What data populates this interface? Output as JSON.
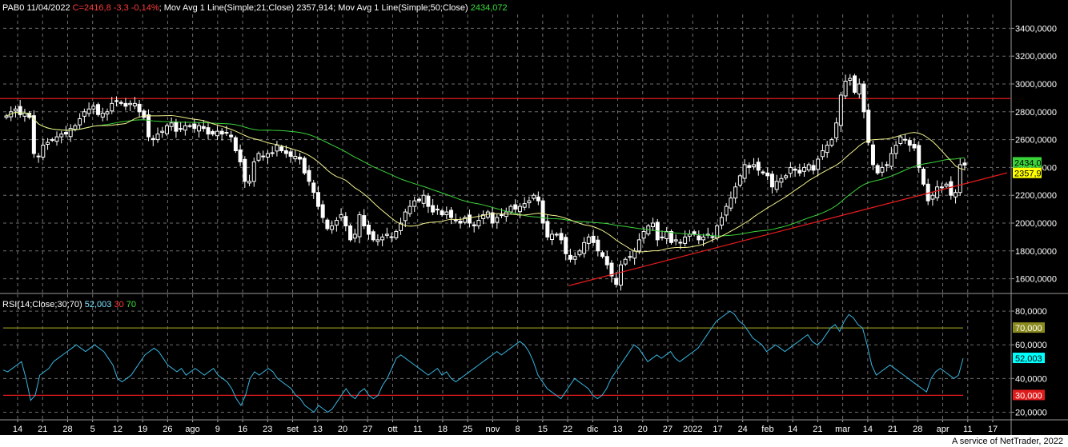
{
  "header": {
    "symbol_date": "PAB0 11/04/2022",
    "close_info": "C=2416,8 -3,3 -0,14%",
    "ma21_label": "Mov Avg 1 Line(Simple;21;Close)",
    "ma21_value": "2357,914",
    "ma50_label": "Mov Avg 1 Line(Simple;50;Close)",
    "ma50_value": "2434,072"
  },
  "rsi_header": {
    "label": "RSI(14;Close;30;70)",
    "value": "52,003",
    "low": "30",
    "high": "70"
  },
  "footer": "A service of NetTrader, 2022",
  "colors": {
    "candle": "#ffffff",
    "ma21": "#f0f08c",
    "ma50": "#3ad43a",
    "trendline": "#e01b1b",
    "rsi_line": "#38b6e0",
    "rsi70": "#8a8a1f",
    "rsi30": "#e01b1b",
    "grid": "#6e6e6e"
  },
  "chart_data": [
    {
      "type": "candlestick",
      "title": "PAB0 11/04/2022",
      "ylim": [
        1500,
        3500
      ],
      "y_ticks": [
        "1600,0000",
        "1800,0000",
        "2000,0000",
        "2200,0000",
        "2400,0000",
        "2600,0000",
        "2800,0000",
        "3000,0000",
        "3200,0000",
        "3400,0000"
      ],
      "x_ticks": [
        "14",
        "21",
        "28",
        "5",
        "12",
        "19",
        "26",
        "ago",
        "9",
        "16",
        "23",
        "set",
        "13",
        "20",
        "27",
        "ott",
        "11",
        "18",
        "25",
        "nov",
        "8",
        "15",
        "22",
        "dic",
        "13",
        "20",
        "27",
        "2022",
        "17",
        "24",
        "feb",
        "14",
        "21",
        "mar",
        "14",
        "21",
        "28",
        "apr",
        "11",
        "17"
      ],
      "value_badges": [
        {
          "label": "2434,072",
          "value": 2434.072,
          "color": "#3ad43a"
        },
        {
          "label": "2357,914",
          "value": 2357.914,
          "color": "#ffff00"
        }
      ],
      "horizontal_line": 2895,
      "trendline": {
        "from": [
          0.5615,
          1550
        ],
        "to": [
          0.9425,
          2260
        ]
      },
      "close": [
        2770,
        2800,
        2820,
        2780,
        2790,
        2760,
        2500,
        2480,
        2560,
        2580,
        2600,
        2620,
        2640,
        2640,
        2680,
        2700,
        2750,
        2800,
        2820,
        2840,
        2780,
        2790,
        2800,
        2860,
        2880,
        2860,
        2840,
        2860,
        2860,
        2800,
        2760,
        2620,
        2600,
        2640,
        2660,
        2700,
        2720,
        2660,
        2680,
        2700,
        2700,
        2680,
        2700,
        2680,
        2640,
        2640,
        2660,
        2640,
        2650,
        2620,
        2520,
        2440,
        2300,
        2300,
        2440,
        2500,
        2480,
        2500,
        2500,
        2560,
        2520,
        2500,
        2480,
        2480,
        2460,
        2360,
        2300,
        2220,
        2120,
        2040,
        1960,
        1980,
        2020,
        2060,
        1980,
        1880,
        1920,
        2060,
        1980,
        1920,
        1880,
        1880,
        1900,
        1920,
        1900,
        1940,
        2000,
        2080,
        2120,
        2160,
        2160,
        2200,
        2120,
        2080,
        2100,
        2060,
        2080,
        2040,
        2020,
        2000,
        2040,
        2000,
        1980,
        2020,
        2060,
        2080,
        2000,
        2040,
        2060,
        2080,
        2120,
        2100,
        2120,
        2140,
        2160,
        2200,
        2160,
        2000,
        1900,
        1920,
        1920,
        1880,
        1780,
        1740,
        1760,
        1800,
        1860,
        1900,
        1860,
        1800,
        1760,
        1700,
        1620,
        1560,
        1700,
        1740,
        1760,
        1800,
        1880,
        1940,
        1980,
        2000,
        1880,
        1900,
        1940,
        1860,
        1880,
        1860,
        1900,
        1920,
        1920,
        1880,
        1900,
        1920,
        1900,
        1980,
        2040,
        2120,
        2180,
        2260,
        2340,
        2420,
        2400,
        2420,
        2380,
        2360,
        2340,
        2260,
        2300,
        2320,
        2340,
        2400,
        2380,
        2360,
        2400,
        2420,
        2380,
        2460,
        2520,
        2560,
        2600,
        2720,
        2920,
        3020,
        3040,
        2940,
        3000,
        2800,
        2580,
        2420,
        2360,
        2400,
        2420,
        2500,
        2560,
        2620,
        2600,
        2560,
        2540,
        2400,
        2280,
        2160,
        2200,
        2260,
        2260,
        2280,
        2200,
        2220,
        2420,
        2417
      ],
      "sma21_last": 2357.914,
      "sma50_last": 2434.072
    },
    {
      "type": "line",
      "title": "RSI(14;Close;30;70)",
      "ylim": [
        15,
        90
      ],
      "y_ticks": [
        "20,0000",
        "40,0000",
        "60,0000",
        "80,0000"
      ],
      "levels": [
        {
          "label": "70,000",
          "value": 70
        },
        {
          "label": "30,000",
          "value": 30
        }
      ],
      "value_badge": {
        "label": "52,003",
        "value": 52.003
      },
      "series": [
        {
          "values": [
            45,
            44,
            46,
            48,
            50,
            40,
            27,
            30,
            42,
            44,
            46,
            50,
            52,
            54,
            56,
            58,
            60,
            58,
            56,
            58,
            60,
            58,
            56,
            52,
            48,
            40,
            38,
            40,
            42,
            46,
            50,
            54,
            56,
            58,
            56,
            52,
            48,
            46,
            44,
            46,
            42,
            44,
            46,
            44,
            42,
            44,
            46,
            42,
            40,
            38,
            34,
            28,
            24,
            30,
            40,
            44,
            42,
            44,
            46,
            44,
            40,
            38,
            36,
            34,
            30,
            28,
            24,
            22,
            20,
            24,
            22,
            20,
            22,
            26,
            30,
            34,
            30,
            28,
            32,
            34,
            30,
            28,
            30,
            36,
            40,
            46,
            52,
            54,
            52,
            50,
            48,
            46,
            44,
            42,
            44,
            46,
            42,
            44,
            40,
            38,
            40,
            42,
            44,
            46,
            48,
            50,
            52,
            54,
            56,
            54,
            56,
            58,
            60,
            62,
            60,
            56,
            50,
            42,
            38,
            34,
            32,
            30,
            28,
            32,
            36,
            40,
            38,
            36,
            34,
            30,
            28,
            30,
            34,
            40,
            44,
            48,
            52,
            56,
            60,
            58,
            54,
            50,
            52,
            54,
            52,
            54,
            56,
            52,
            50,
            52,
            54,
            56,
            58,
            62,
            66,
            70,
            74,
            76,
            78,
            80,
            78,
            74,
            72,
            68,
            64,
            62,
            60,
            56,
            58,
            60,
            58,
            56,
            58,
            60,
            62,
            64,
            66,
            62,
            60,
            62,
            66,
            70,
            72,
            68,
            74,
            78,
            76,
            72,
            70,
            60,
            48,
            42,
            44,
            46,
            48,
            46,
            44,
            42,
            40,
            38,
            36,
            34,
            32,
            40,
            44,
            46,
            44,
            42,
            40,
            42,
            52
          ]
        }
      ]
    }
  ]
}
